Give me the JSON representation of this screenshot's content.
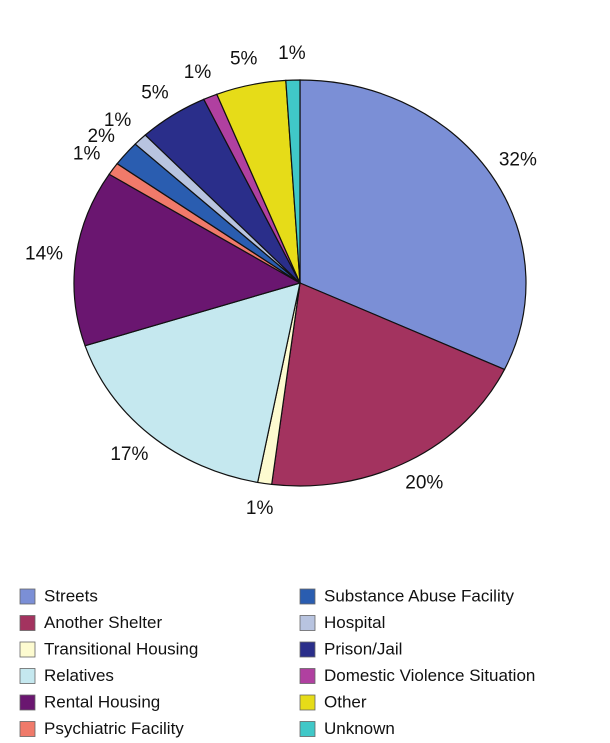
{
  "chart_data": {
    "type": "pie",
    "categories": [
      "Streets",
      "Another Shelter",
      "Transitional Housing",
      "Relatives",
      "Rental Housing",
      "Psychiatric Facility",
      "Substance Abuse Facility",
      "Hospital",
      "Prison/Jail",
      "Domestic Violence Situation",
      "Other",
      "Unknown"
    ],
    "values": [
      32,
      20,
      1,
      17,
      14,
      1,
      2,
      1,
      5,
      1,
      5,
      1
    ],
    "value_labels": [
      "32%",
      "20%",
      "1%",
      "17%",
      "14%",
      "1%",
      "2%",
      "1%",
      "5%",
      "1%",
      "5%",
      "1%"
    ],
    "colors": [
      "#7b8fd6",
      "#a3335f",
      "#fdfbd0",
      "#c5e8ef",
      "#6a1670",
      "#f07a6a",
      "#2a5db0",
      "#b8c4e0",
      "#2a2e8a",
      "#b040a0",
      "#e6dc18",
      "#40c8c8"
    ]
  }
}
